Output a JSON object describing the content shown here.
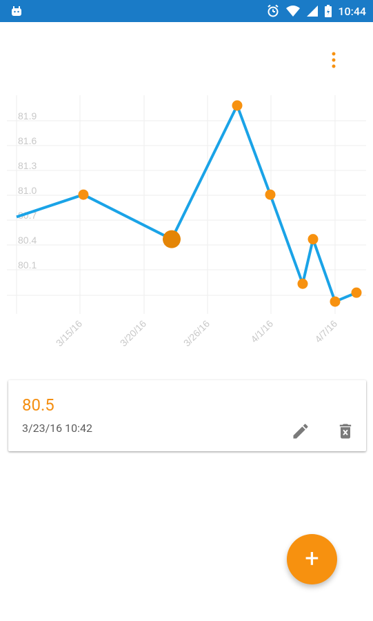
{
  "status_bar": {
    "time": "10:44",
    "icons": [
      "android-icon",
      "alarm-icon",
      "wifi-icon",
      "signal-icon",
      "battery-icon"
    ]
  },
  "menu": {
    "icon": "more-vert-icon"
  },
  "chart_data": {
    "type": "line",
    "x": [
      "3/10/16",
      "3/15/16",
      "3/22/16",
      "3/28/16",
      "4/1/16",
      "4/4/16",
      "4/5/16",
      "4/7/16",
      "4/9/16"
    ],
    "values": [
      80.75,
      81.0,
      80.5,
      82.0,
      81.0,
      80.0,
      80.5,
      79.8,
      79.9
    ],
    "xticks": [
      "3/15/16",
      "3/20/16",
      "3/26/16",
      "4/1/16",
      "4/7/16"
    ],
    "ytick_labels": [
      "81.9",
      "81.6",
      "81.3",
      "81.0",
      "80.7",
      "80.4",
      "80.1"
    ],
    "ylim": [
      79.7,
      82.1
    ],
    "line_color": "#1aa3e7",
    "point_color": "#f7910f",
    "highlight_point_index": 2,
    "grid": true
  },
  "card": {
    "value": "80.5",
    "date": "3/23/16 10:42",
    "edit_icon": "pencil-icon",
    "delete_icon": "trash-icon"
  },
  "fab": {
    "label": "+"
  }
}
